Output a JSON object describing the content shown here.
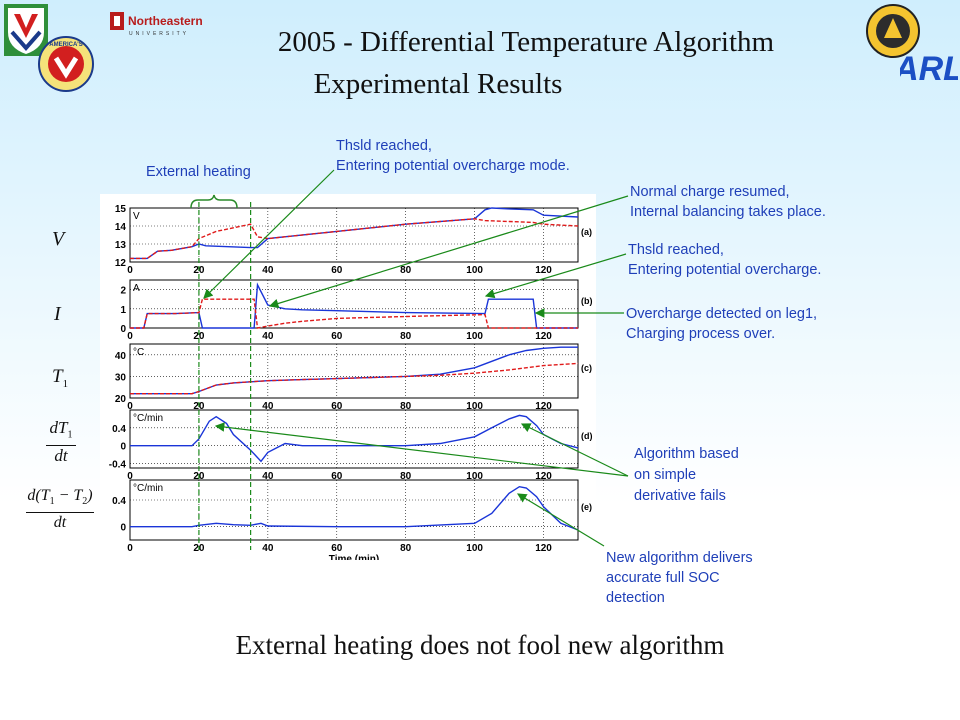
{
  "header": {
    "title_line1": "2005 - Differential Temperature Algorithm",
    "title_line2": "Experimental Results"
  },
  "logos": {
    "northeastern_name": "Northeastern",
    "northeastern_sub": "UNIVERSITY",
    "arl": "ARL",
    "americas_badge": "AMERICA'S"
  },
  "annotations": {
    "external_heating": "External heating",
    "thsld1_line1": "Thsld reached,",
    "thsld1_line2": "Entering potential overcharge mode.",
    "normal_line1": "Normal charge resumed,",
    "normal_line2": "Internal balancing takes place.",
    "thsld2_line1": "Thsld reached,",
    "thsld2_line2": "Entering potential overcharge.",
    "over_line1": "Overcharge detected on leg1,",
    "over_line2": "Charging process over.",
    "alg_line1": "Algorithm based",
    "alg_line2": "on simple",
    "alg_line3": "derivative fails",
    "new_line1": "New algorithm delivers",
    "new_line2": "accurate full SOC",
    "new_line3": "detection"
  },
  "left_labels": {
    "v": "V",
    "i": "I",
    "t1": "T",
    "t1_sub": "1",
    "dt1_num": "dT",
    "dt1_sub": "1",
    "dt1_den": "dt",
    "dd_num": "d(T",
    "dd_sub1": "1",
    "dd_mid": " − T",
    "dd_sub2": "2",
    "dd_close": ")",
    "dd_den": "dt"
  },
  "footer": "External heating does not fool new algorithm",
  "chart_data": [
    {
      "type": "line",
      "tag": "(a)",
      "unit": "V",
      "ylim": [
        12,
        15
      ],
      "yticks": [
        12,
        13,
        14,
        15
      ],
      "xlim": [
        0,
        130
      ],
      "xticks": [
        0,
        20,
        40,
        60,
        80,
        100,
        120
      ],
      "series": [
        {
          "color": "#1a35d8",
          "style": "solid",
          "x": [
            0,
            5,
            8,
            12,
            18,
            20,
            22,
            35,
            37,
            40,
            60,
            80,
            100,
            103,
            105,
            110,
            117,
            120,
            130
          ],
          "y": [
            12.2,
            12.2,
            12.6,
            12.65,
            12.85,
            13.0,
            12.9,
            12.8,
            12.8,
            13.3,
            13.7,
            14.1,
            14.4,
            14.9,
            15.0,
            14.95,
            14.9,
            14.6,
            14.5
          ]
        },
        {
          "color": "#e01a1a",
          "style": "dashed",
          "x": [
            0,
            5,
            8,
            12,
            18,
            20,
            25,
            30,
            35,
            37,
            40,
            60,
            80,
            100,
            103,
            110,
            117,
            120,
            130
          ],
          "y": [
            12.2,
            12.2,
            12.6,
            12.65,
            12.85,
            13.3,
            13.7,
            13.9,
            14.1,
            13.4,
            13.3,
            13.7,
            14.1,
            14.4,
            14.3,
            14.25,
            14.2,
            14.1,
            14.0
          ]
        }
      ]
    },
    {
      "type": "line",
      "tag": "(b)",
      "unit": "A",
      "ylim": [
        0,
        2.5
      ],
      "yticks": [
        0,
        1,
        2
      ],
      "xlim": [
        0,
        130
      ],
      "xticks": [
        0,
        20,
        40,
        60,
        80,
        100,
        120
      ],
      "series": [
        {
          "color": "#1a35d8",
          "style": "solid",
          "x": [
            0,
            4,
            5,
            12,
            13,
            20,
            21,
            35,
            36,
            37,
            40,
            45,
            50,
            60,
            80,
            103,
            104,
            117,
            118,
            130
          ],
          "y": [
            0,
            0,
            0.75,
            0.75,
            0.75,
            0.8,
            0,
            0,
            0,
            2.25,
            1.2,
            1.0,
            0.95,
            0.9,
            0.8,
            0.75,
            1.5,
            1.5,
            0,
            0
          ]
        },
        {
          "color": "#e01a1a",
          "style": "dashed",
          "x": [
            0,
            4,
            5,
            12,
            13,
            20,
            21,
            35,
            36,
            37,
            40,
            45,
            50,
            60,
            80,
            103,
            104,
            130
          ],
          "y": [
            0,
            0,
            0.75,
            0.75,
            0.75,
            0.8,
            1.5,
            1.5,
            1.5,
            0,
            0.1,
            0.25,
            0.35,
            0.5,
            0.6,
            0.7,
            0,
            0
          ]
        }
      ]
    },
    {
      "type": "line",
      "tag": "(c)",
      "unit": "°C",
      "ylim": [
        20,
        45
      ],
      "yticks": [
        20,
        30,
        40
      ],
      "xlim": [
        0,
        130
      ],
      "xticks": [
        0,
        20,
        40,
        60,
        80,
        100,
        120
      ],
      "series": [
        {
          "color": "#1a35d8",
          "style": "solid",
          "x": [
            0,
            18,
            20,
            25,
            30,
            35,
            40,
            50,
            60,
            70,
            80,
            90,
            100,
            105,
            110,
            115,
            120,
            125,
            130
          ],
          "y": [
            22,
            22,
            23,
            26,
            27,
            27.5,
            28,
            28.5,
            29,
            29.5,
            30,
            31,
            34,
            37,
            40,
            42,
            43,
            43.5,
            43.5
          ]
        },
        {
          "color": "#e01a1a",
          "style": "dashed",
          "x": [
            0,
            18,
            20,
            25,
            30,
            35,
            40,
            50,
            60,
            70,
            80,
            90,
            100,
            110,
            120,
            130
          ],
          "y": [
            22,
            22,
            23,
            26,
            27,
            27.5,
            28,
            28.5,
            29,
            29.5,
            30,
            30.5,
            31.5,
            33,
            35,
            36
          ]
        }
      ]
    },
    {
      "type": "line",
      "tag": "(d)",
      "unit": "°C/min",
      "ylim": [
        -0.5,
        0.8
      ],
      "yticks": [
        -0.4,
        0,
        0.4
      ],
      "xlim": [
        0,
        130
      ],
      "xticks": [
        0,
        20,
        40,
        60,
        80,
        100,
        120
      ],
      "series": [
        {
          "color": "#1a35d8",
          "style": "solid",
          "x": [
            0,
            15,
            18,
            20,
            23,
            25,
            28,
            30,
            35,
            38,
            40,
            45,
            50,
            60,
            70,
            80,
            90,
            100,
            105,
            110,
            113,
            115,
            118,
            120,
            125,
            130
          ],
          "y": [
            0,
            0,
            0,
            0.15,
            0.55,
            0.65,
            0.5,
            0.25,
            -0.1,
            -0.35,
            -0.15,
            0.05,
            0,
            0,
            0,
            0,
            0.05,
            0.2,
            0.4,
            0.6,
            0.68,
            0.65,
            0.45,
            0.25,
            0.05,
            -0.05
          ]
        }
      ]
    },
    {
      "type": "line",
      "tag": "(e)",
      "unit": "°C/min",
      "ylim": [
        -0.2,
        0.7
      ],
      "yticks": [
        0,
        0.4
      ],
      "xlim": [
        0,
        130
      ],
      "xticks": [
        0,
        20,
        40,
        60,
        80,
        100,
        120
      ],
      "xlabel": "Time (min)",
      "series": [
        {
          "color": "#1a35d8",
          "style": "solid",
          "x": [
            0,
            18,
            20,
            25,
            30,
            35,
            38,
            40,
            60,
            80,
            100,
            105,
            110,
            113,
            115,
            118,
            120,
            125,
            130
          ],
          "y": [
            0,
            0,
            0.02,
            0.05,
            0.03,
            0.02,
            0.05,
            0.01,
            0,
            0,
            0.05,
            0.2,
            0.5,
            0.6,
            0.58,
            0.45,
            0.3,
            0.05,
            -0.05
          ]
        }
      ]
    }
  ]
}
